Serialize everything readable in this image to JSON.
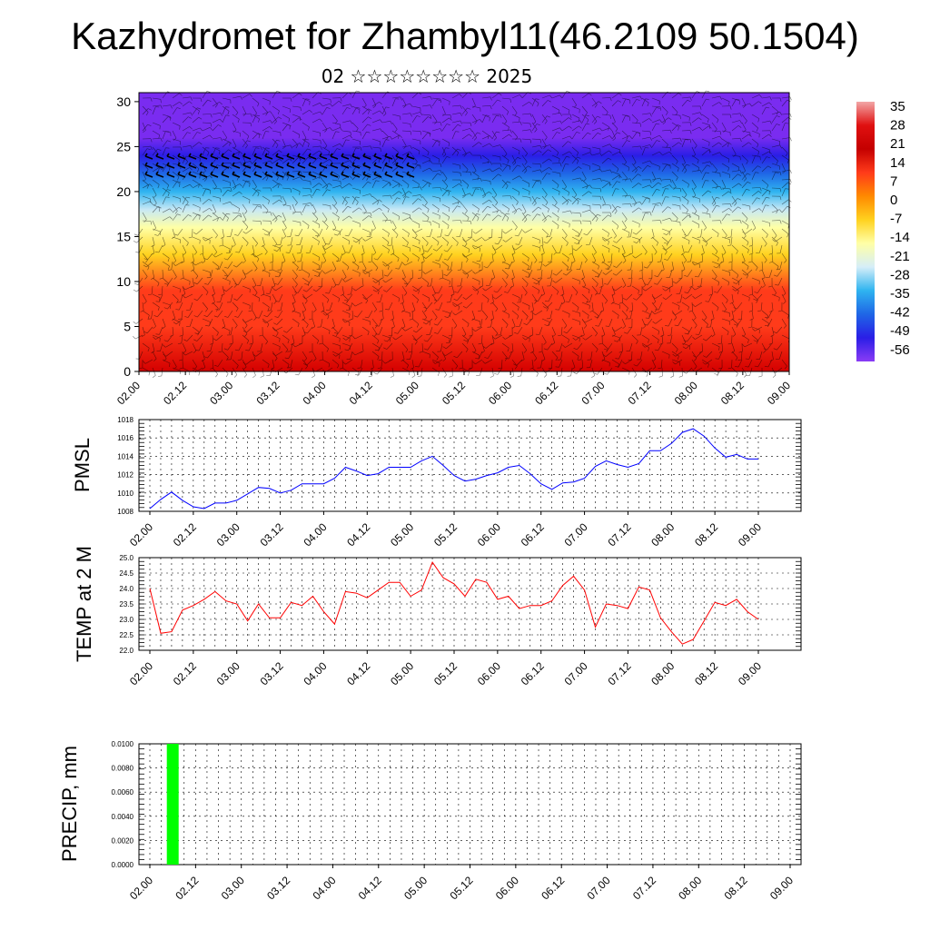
{
  "title": "Kazhydromet for Zhambyl11(46.2109 50.1504)",
  "subtitle": "02 ☆☆☆☆☆☆☆☆ 2025",
  "chart_data": [
    {
      "type": "heatmap",
      "name": "cross-section",
      "x_tick_labels": [
        "02.00",
        "02.12",
        "03.00",
        "03.12",
        "04.00",
        "04.12",
        "05.00",
        "05.12",
        "06.00",
        "06.12",
        "07.00",
        "07.12",
        "08.00",
        "08.12",
        "09.00"
      ],
      "ylim": [
        0,
        31
      ],
      "y_ticks": [
        0,
        5,
        10,
        15,
        20,
        25,
        30
      ],
      "colorbar_labels": [
        "35",
        "28",
        "21",
        "14",
        "7",
        "0",
        "-7",
        "-14",
        "-21",
        "-28",
        "-35",
        "-42",
        "-49",
        "-56"
      ],
      "colorbar_range": [
        -60,
        38
      ],
      "temperature_profile": [
        {
          "height": 0,
          "value": 34
        },
        {
          "height": 5,
          "value": 28
        },
        {
          "height": 9,
          "value": 22
        },
        {
          "height": 13,
          "value": 7
        },
        {
          "height": 16,
          "value": -8
        },
        {
          "height": 18,
          "value": -14
        },
        {
          "height": 20,
          "value": -24
        },
        {
          "height": 22,
          "value": -35
        },
        {
          "height": 24,
          "value": -45
        },
        {
          "height": 26,
          "value": -55
        },
        {
          "height": 31,
          "value": -57
        }
      ],
      "colors": [
        "#d40000",
        "#ff3b1a",
        "#ff8a00",
        "#ffd21f",
        "#ffffa6",
        "#c7e8f5",
        "#2fb4f0",
        "#1f66e6",
        "#2a1ee6",
        "#7a2cf0"
      ],
      "wind_barbs": true
    },
    {
      "type": "line",
      "ylabel": "PMSL",
      "x_tick_labels": [
        "02.00",
        "02.12",
        "03.00",
        "03.12",
        "04.00",
        "04.12",
        "05.00",
        "05.12",
        "06.00",
        "06.12",
        "07.00",
        "07.12",
        "08.00",
        "08.12",
        "09.00"
      ],
      "ylim": [
        1008,
        1018
      ],
      "y_ticks": [
        "1008",
        "1010",
        "1012",
        "1014",
        "1016",
        "1018"
      ],
      "color": "#0000ff",
      "grid": true,
      "values": [
        1008.3,
        1009.3,
        1010.1,
        1009.2,
        1008.5,
        1008.3,
        1008.9,
        1008.9,
        1009.2,
        1009.9,
        1010.6,
        1010.5,
        1010.0,
        1010.3,
        1011.0,
        1011.0,
        1011.0,
        1011.6,
        1012.8,
        1012.4,
        1011.9,
        1012.1,
        1012.8,
        1012.8,
        1012.8,
        1013.5,
        1014.0,
        1013.0,
        1011.9,
        1011.3,
        1011.5,
        1011.9,
        1012.2,
        1012.8,
        1013.0,
        1012.1,
        1011.0,
        1010.4,
        1011.1,
        1011.2,
        1011.6,
        1012.9,
        1013.5,
        1013.1,
        1012.8,
        1013.2,
        1014.6,
        1014.6,
        1015.4,
        1016.6,
        1017.0,
        1016.2,
        1014.9,
        1013.9,
        1014.2,
        1013.7,
        1013.7
      ]
    },
    {
      "type": "line",
      "ylabel": "TEMP at 2 M",
      "x_tick_labels": [
        "02.00",
        "02.12",
        "03.00",
        "03.12",
        "04.00",
        "04.12",
        "05.00",
        "05.12",
        "06.00",
        "06.12",
        "07.00",
        "07.12",
        "08.00",
        "08.12",
        "09.00"
      ],
      "ylim": [
        22.0,
        25.0
      ],
      "y_ticks": [
        "22.0",
        "22.5",
        "23.0",
        "23.5",
        "24.0",
        "24.5",
        "25.0"
      ],
      "color": "#ff0000",
      "grid": true,
      "values": [
        24.0,
        22.55,
        22.6,
        23.3,
        23.45,
        23.65,
        23.9,
        23.6,
        23.5,
        22.95,
        23.5,
        23.05,
        23.05,
        23.55,
        23.45,
        23.75,
        23.25,
        22.85,
        23.9,
        23.85,
        23.7,
        23.95,
        24.2,
        24.2,
        23.75,
        23.95,
        24.85,
        24.35,
        24.15,
        23.75,
        24.3,
        24.2,
        23.65,
        23.75,
        23.35,
        23.45,
        23.45,
        23.6,
        24.1,
        24.4,
        23.95,
        22.75,
        23.5,
        23.45,
        23.35,
        24.05,
        23.95,
        23.05,
        22.6,
        22.2,
        22.35,
        22.95,
        23.55,
        23.45,
        23.65,
        23.25,
        23.0
      ]
    },
    {
      "type": "bar",
      "ylabel": "PRECIP, mm",
      "x_tick_labels": [
        "02.00",
        "02.12",
        "03.00",
        "03.12",
        "04.00",
        "04.12",
        "05.00",
        "05.12",
        "06.00",
        "06.12",
        "07.00",
        "07.12",
        "08.00",
        "08.12",
        "09.00"
      ],
      "ylim": [
        0.0,
        0.01
      ],
      "y_ticks": [
        "0.0000",
        "0.0020",
        "0.0040",
        "0.0060",
        "0.0080",
        "0.0100"
      ],
      "color": "#00ff00",
      "grid": true,
      "bars": [
        {
          "step": 2,
          "value": 0.01
        }
      ]
    }
  ]
}
